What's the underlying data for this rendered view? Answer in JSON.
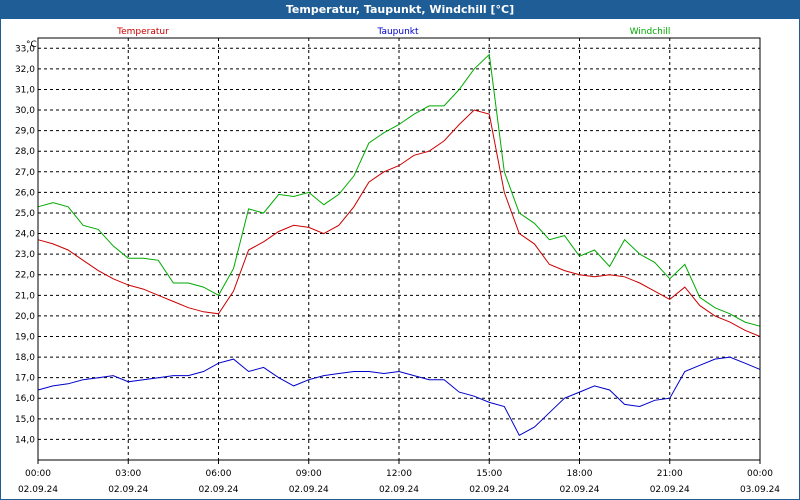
{
  "window": {
    "title": "Temperatur, Taupunkt, Windchill [°C]"
  },
  "chart_data": {
    "type": "line",
    "title": "Temperatur, Taupunkt, Windchill [°C]",
    "ylabel": "°C",
    "ylim": [
      13.0,
      33.5
    ],
    "yticks": [
      "14,0",
      "15,0",
      "16,0",
      "17,0",
      "18,0",
      "19,0",
      "20,0",
      "21,0",
      "22,0",
      "23,0",
      "24,0",
      "25,0",
      "26,0",
      "27,0",
      "28,0",
      "29,0",
      "30,0",
      "31,0",
      "32,0",
      "33,0"
    ],
    "xlim": [
      0,
      24
    ],
    "xticks": [
      {
        "time": "00:00",
        "date": "02.09.24"
      },
      {
        "time": "03:00",
        "date": "02.09.24"
      },
      {
        "time": "06:00",
        "date": "02.09.24"
      },
      {
        "time": "09:00",
        "date": "02.09.24"
      },
      {
        "time": "12:00",
        "date": "02.09.24"
      },
      {
        "time": "15:00",
        "date": "02.09.24"
      },
      {
        "time": "18:00",
        "date": "02.09.24"
      },
      {
        "time": "21:00",
        "date": "02.09.24"
      },
      {
        "time": "00:00",
        "date": "03.09.24"
      }
    ],
    "grid": true,
    "legend": "top",
    "x": [
      0,
      0.5,
      1,
      1.5,
      2,
      2.5,
      3,
      3.5,
      4,
      4.5,
      5,
      5.5,
      6,
      6.5,
      7,
      7.5,
      8,
      8.5,
      9,
      9.5,
      10,
      10.5,
      11,
      11.5,
      12,
      12.5,
      13,
      13.5,
      14,
      14.5,
      15,
      15.5,
      16,
      16.5,
      17,
      17.5,
      18,
      18.5,
      19,
      19.5,
      20,
      20.5,
      21,
      21.5,
      22,
      22.5,
      23,
      23.5,
      24
    ],
    "series": [
      {
        "name": "Temperatur",
        "color": "#cc0000",
        "values": [
          23.7,
          23.5,
          23.2,
          22.7,
          22.2,
          21.8,
          21.5,
          21.3,
          21.0,
          20.7,
          20.4,
          20.2,
          20.1,
          21.2,
          23.2,
          23.6,
          24.1,
          24.4,
          24.3,
          24.0,
          24.4,
          25.3,
          26.5,
          27.0,
          27.3,
          27.8,
          28.0,
          28.5,
          29.3,
          30.0,
          29.8,
          26.0,
          24.0,
          23.5,
          22.5,
          22.2,
          22.0,
          21.9,
          22.0,
          21.9,
          21.6,
          21.2,
          20.8,
          21.4,
          20.5,
          20.0,
          19.7,
          19.3,
          19.0
        ]
      },
      {
        "name": "Taupunkt",
        "color": "#0000cc",
        "values": [
          16.4,
          16.6,
          16.7,
          16.9,
          17.0,
          17.1,
          16.8,
          16.9,
          17.0,
          17.1,
          17.1,
          17.3,
          17.7,
          17.9,
          17.3,
          17.5,
          17.0,
          16.6,
          16.9,
          17.1,
          17.2,
          17.3,
          17.3,
          17.2,
          17.3,
          17.1,
          16.9,
          16.9,
          16.3,
          16.1,
          15.8,
          15.6,
          14.2,
          14.6,
          15.3,
          16.0,
          16.3,
          16.6,
          16.4,
          15.7,
          15.6,
          15.9,
          16.0,
          17.3,
          17.6,
          17.9,
          18.0,
          17.7,
          17.4
        ]
      },
      {
        "name": "Windchill",
        "color": "#00aa00",
        "values": [
          25.3,
          25.5,
          25.3,
          24.4,
          24.2,
          23.4,
          22.8,
          22.8,
          22.7,
          21.6,
          21.6,
          21.4,
          21.0,
          22.3,
          25.2,
          25.0,
          25.9,
          25.8,
          26.0,
          25.4,
          25.9,
          26.8,
          28.4,
          28.9,
          29.3,
          29.8,
          30.2,
          30.2,
          31.0,
          32.0,
          32.7,
          27.0,
          25.0,
          24.5,
          23.7,
          23.9,
          22.9,
          23.2,
          22.4,
          23.7,
          23.0,
          22.6,
          21.8,
          22.5,
          20.9,
          20.4,
          20.1,
          19.7,
          19.5
        ]
      }
    ]
  }
}
